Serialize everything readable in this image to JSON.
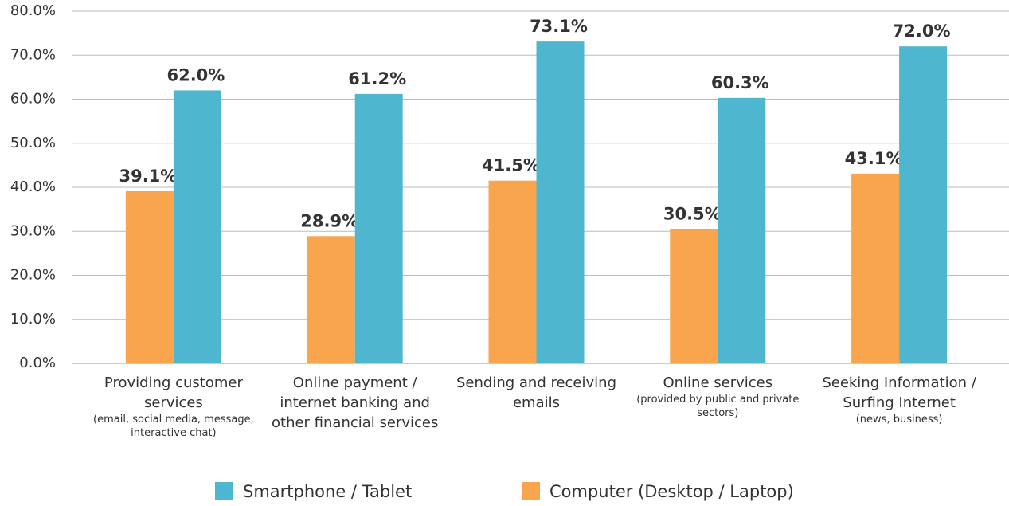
{
  "chart_data": {
    "type": "bar",
    "categories": [
      "Providing customer services",
      "Online payment / internet banking and other financial services",
      "Sending and receiving emails",
      "Online services",
      "Seeking Information / Surfing Internet"
    ],
    "category_details": [
      "(email, social media, message, interactive chat)",
      null,
      null,
      "(provided by public and private sectors)",
      "(news, business)"
    ],
    "series": [
      {
        "name": "Smartphone / Tablet",
        "color": "#4fb6d0",
        "values": [
          62.0,
          61.2,
          73.1,
          60.3,
          72.0
        ],
        "value_labels": [
          "62.0%",
          "61.2%",
          "73.1%",
          "60.3%",
          "72.0%"
        ]
      },
      {
        "name": "Computer (Desktop / Laptop)",
        "color": "#f9a54e",
        "values": [
          39.1,
          28.9,
          41.5,
          30.5,
          43.1
        ],
        "value_labels": [
          "39.1%",
          "28.9%",
          "41.5%",
          "30.5%",
          "43.1%"
        ]
      }
    ],
    "ylim": [
      0,
      80
    ],
    "yticks": [
      {
        "value": 0,
        "label": "0.0%"
      },
      {
        "value": 10,
        "label": "10.0%"
      },
      {
        "value": 20,
        "label": "20.0%"
      },
      {
        "value": 30,
        "label": "30.0%"
      },
      {
        "value": 40,
        "label": "40.0%"
      },
      {
        "value": 50,
        "label": "50.0%"
      },
      {
        "value": 60,
        "label": "60.0%"
      },
      {
        "value": 70,
        "label": "70.0%"
      },
      {
        "value": 80,
        "label": "80.0%"
      }
    ],
    "grid": true,
    "legend": "bottom"
  }
}
